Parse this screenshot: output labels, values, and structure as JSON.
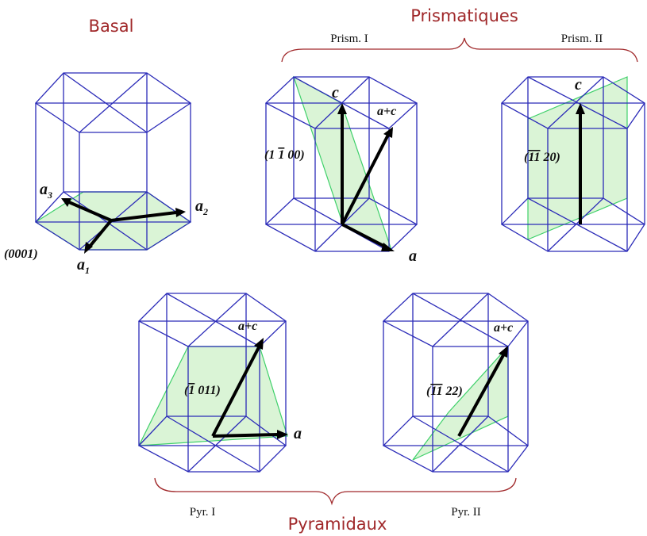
{
  "headers": {
    "basal": "Basal",
    "prismatic": "Prismatiques",
    "pyramidal": "Pyramidaux"
  },
  "subheaders": {
    "prism1": "Prism. I",
    "prism2": "Prism. II",
    "pyr1": "Pyr. I",
    "pyr2": "Pyr. II"
  },
  "basal_labels": {
    "a3": "a",
    "a3_sub": "3",
    "a2": "a",
    "a2_sub": "2",
    "a1": "a",
    "a1_sub": "1",
    "plane": "(0001)"
  },
  "prism1_labels": {
    "c": "c",
    "apc": "a+c",
    "a": "a",
    "plane_open": "(1 ",
    "plane_bar": "1",
    "plane_rest": " 00)"
  },
  "prism2_labels": {
    "c": "c",
    "plane_open": "(",
    "plane_bar": "11",
    "plane_rest": " 20)"
  },
  "pyr1_labels": {
    "apc": "a+c",
    "a": "a",
    "plane_open": "(",
    "plane_bar": "1",
    "plane_rest": " 011)"
  },
  "pyr2_labels": {
    "apc": "a+c",
    "plane_open": "(",
    "plane_bar": "11",
    "plane_rest": " 22)"
  },
  "colors": {
    "header": "#a0282a",
    "edge": "#2b2bb8",
    "plane_fill": "#d4f2cf",
    "plane_stroke": "#3fd06a",
    "arrow": "#000000"
  }
}
